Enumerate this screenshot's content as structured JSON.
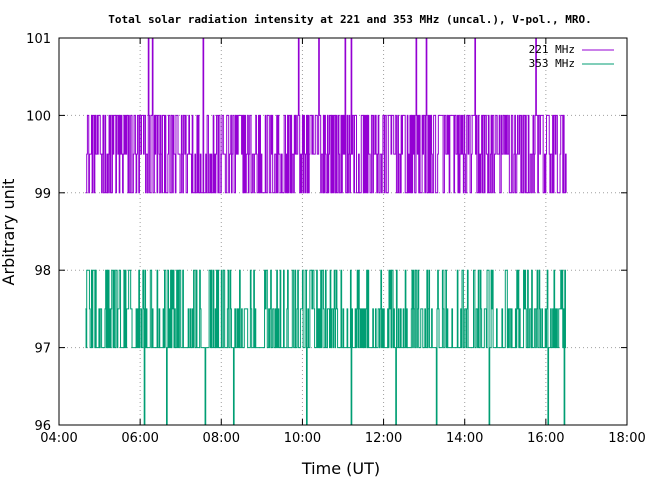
{
  "chart_data": {
    "type": "line",
    "title": "Total solar radiation intensity at 221 and 353 MHz (uncal.), V-pol., MRO.",
    "xlabel": "Time (UT)",
    "ylabel": "Arbitrary unit",
    "xlim_hours": [
      4,
      18
    ],
    "ylim": [
      96,
      101
    ],
    "x_ticks": [
      "04:00",
      "06:00",
      "08:00",
      "10:00",
      "12:00",
      "14:00",
      "16:00",
      "18:00"
    ],
    "y_ticks": [
      "96",
      "97",
      "98",
      "99",
      "100",
      "101"
    ],
    "grid": true,
    "legend_position": "top-right",
    "series": [
      {
        "name": "221 MHz",
        "color": "#9400d3",
        "x_range_hours": [
          4.65,
          16.5
        ],
        "baseline": 99,
        "levels": [
          99,
          99.5,
          100
        ],
        "spikes": [
          {
            "x_hours": 6.2,
            "y": 101
          },
          {
            "x_hours": 6.3,
            "y": 101
          },
          {
            "x_hours": 7.55,
            "y": 101
          },
          {
            "x_hours": 9.9,
            "y": 101
          },
          {
            "x_hours": 10.4,
            "y": 101
          },
          {
            "x_hours": 11.05,
            "y": 101
          },
          {
            "x_hours": 11.2,
            "y": 101
          },
          {
            "x_hours": 12.8,
            "y": 101
          },
          {
            "x_hours": 13.05,
            "y": 101
          },
          {
            "x_hours": 14.25,
            "y": 101
          },
          {
            "x_hours": 15.75,
            "y": 101
          }
        ]
      },
      {
        "name": "353 MHz",
        "color": "#009e73",
        "x_range_hours": [
          4.65,
          16.5
        ],
        "baseline": 97,
        "levels": [
          96.5,
          97,
          97.5,
          98
        ],
        "dips": [
          {
            "x_hours": 6.1,
            "y": 96
          },
          {
            "x_hours": 6.65,
            "y": 96
          },
          {
            "x_hours": 7.6,
            "y": 96
          },
          {
            "x_hours": 8.3,
            "y": 96
          },
          {
            "x_hours": 10.1,
            "y": 96
          },
          {
            "x_hours": 11.2,
            "y": 96
          },
          {
            "x_hours": 12.3,
            "y": 96
          },
          {
            "x_hours": 13.3,
            "y": 96
          },
          {
            "x_hours": 14.6,
            "y": 96
          },
          {
            "x_hours": 16.05,
            "y": 96
          },
          {
            "x_hours": 16.45,
            "y": 96
          }
        ]
      }
    ]
  }
}
